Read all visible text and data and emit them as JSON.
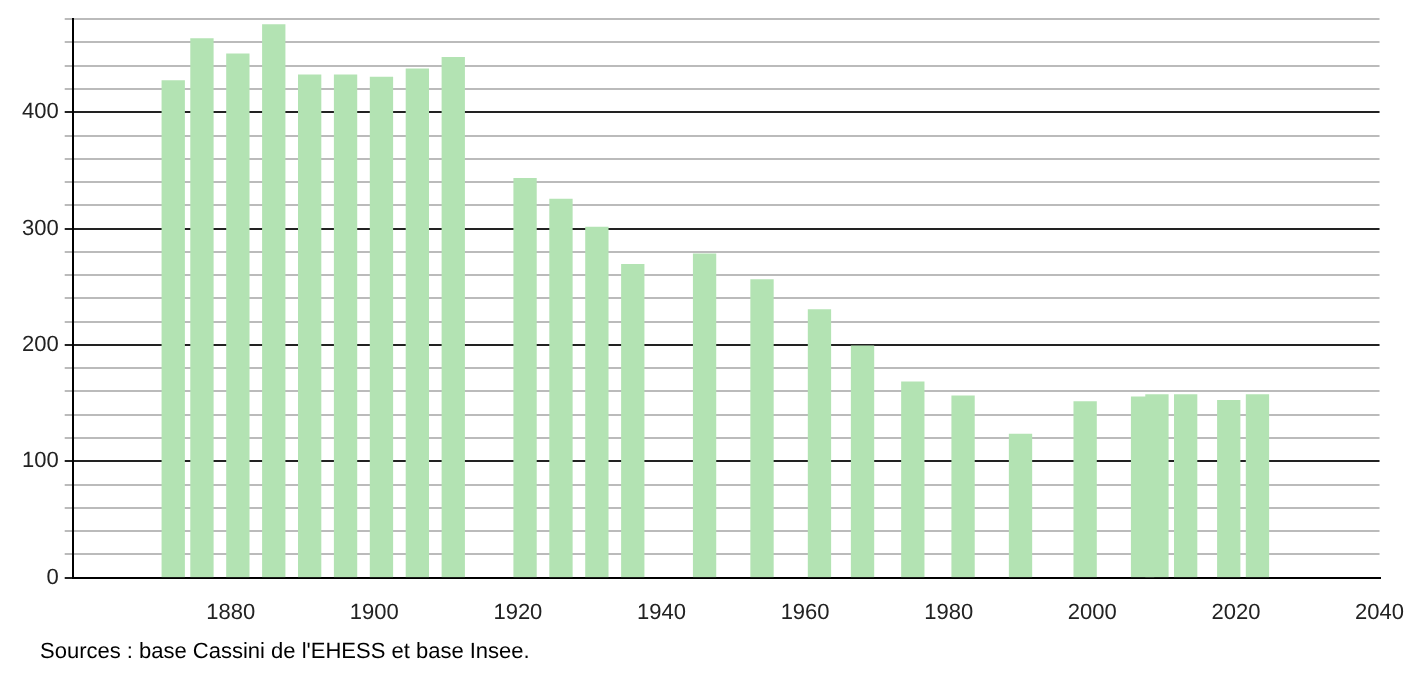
{
  "chart_data": {
    "type": "bar",
    "color": "#b3e3b3",
    "x": [
      1872,
      1876,
      1881,
      1886,
      1891,
      1896,
      1901,
      1906,
      1911,
      1921,
      1926,
      1931,
      1936,
      1946,
      1954,
      1962,
      1968,
      1975,
      1982,
      1990,
      1999,
      2007,
      2009,
      2013,
      2019,
      2023
    ],
    "values": [
      427,
      463,
      450,
      475,
      432,
      432,
      430,
      437,
      447,
      343,
      325,
      301,
      269,
      278,
      256,
      230,
      199,
      168,
      156,
      123,
      151,
      155,
      157,
      157,
      152,
      157
    ],
    "xlim": [
      1858,
      2040
    ],
    "xticks": [
      1880,
      1900,
      1920,
      1940,
      1960,
      1980,
      2000,
      2020,
      2040
    ],
    "ylim": [
      0,
      480
    ],
    "yticks": [
      0,
      {
        "value": 20,
        "label": null
      },
      {
        "value": 40,
        "label": null
      },
      {
        "value": 60,
        "label": null
      },
      {
        "value": 80,
        "label": null
      },
      100,
      {
        "value": 120,
        "label": null
      },
      {
        "value": 140,
        "label": null
      },
      {
        "value": 160,
        "label": null
      },
      {
        "value": 180,
        "label": null
      },
      200,
      {
        "value": 220,
        "label": null
      },
      {
        "value": 240,
        "label": null
      },
      {
        "value": 260,
        "label": null
      },
      {
        "value": 280,
        "label": null
      },
      300,
      {
        "value": 320,
        "label": null
      },
      {
        "value": 340,
        "label": null
      },
      {
        "value": 360,
        "label": null
      },
      {
        "value": 380,
        "label": null
      },
      400,
      {
        "value": 420,
        "label": null
      },
      {
        "value": 440,
        "label": null
      },
      {
        "value": 460,
        "label": null
      },
      {
        "value": 480,
        "label": null
      }
    ],
    "grid": "y",
    "legend": false,
    "annotations": [
      "Sources : base Cassini de l'EHESS et base Insee."
    ]
  }
}
